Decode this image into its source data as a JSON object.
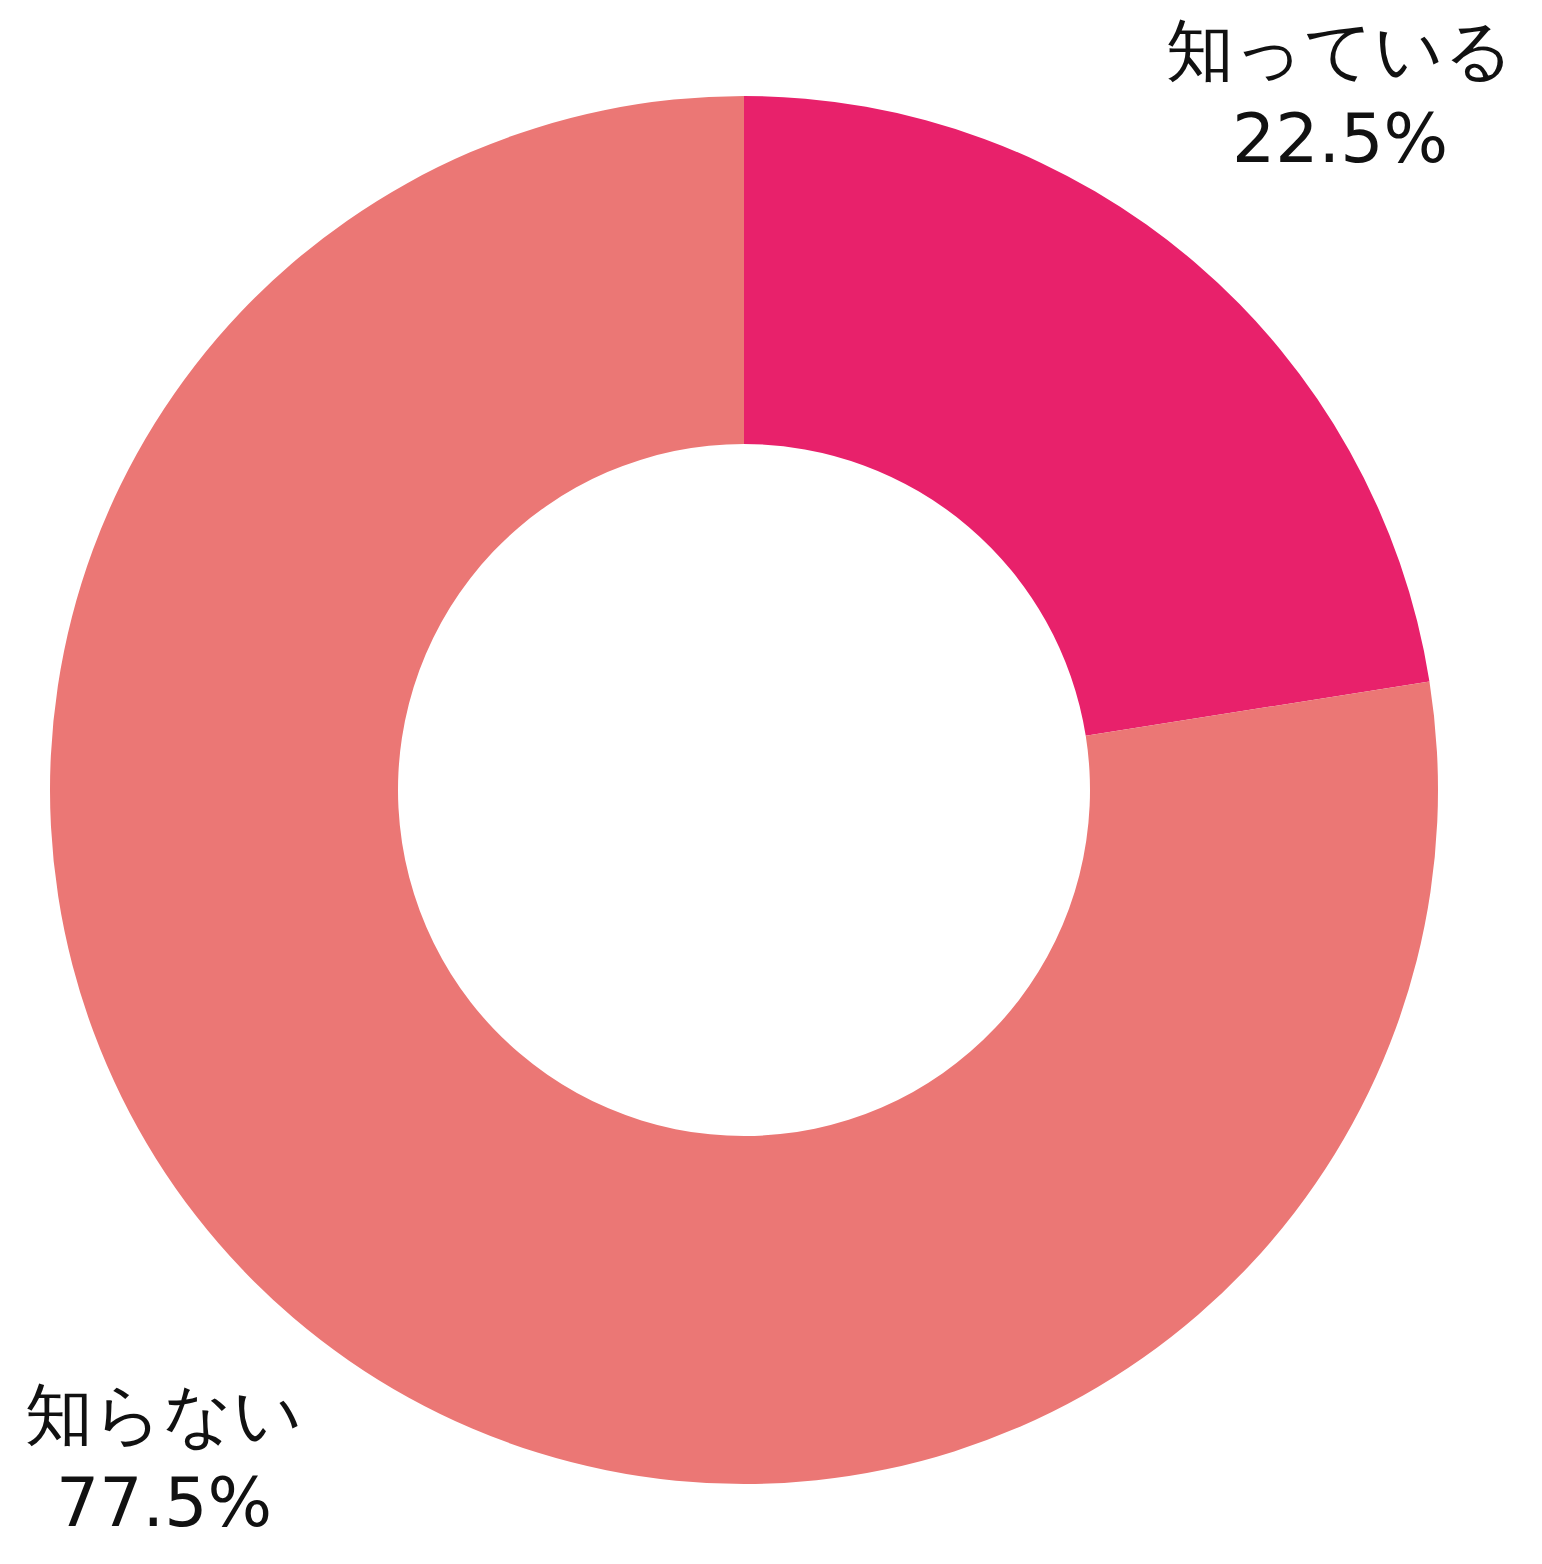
{
  "chart_data": {
    "type": "donut",
    "categories": [
      "知っている",
      "知らない"
    ],
    "values": [
      22.5,
      77.5
    ],
    "colors": [
      "#e8216b",
      "#eb7775"
    ],
    "value_labels": [
      "22.5%",
      "77.5%"
    ],
    "legend": false
  }
}
